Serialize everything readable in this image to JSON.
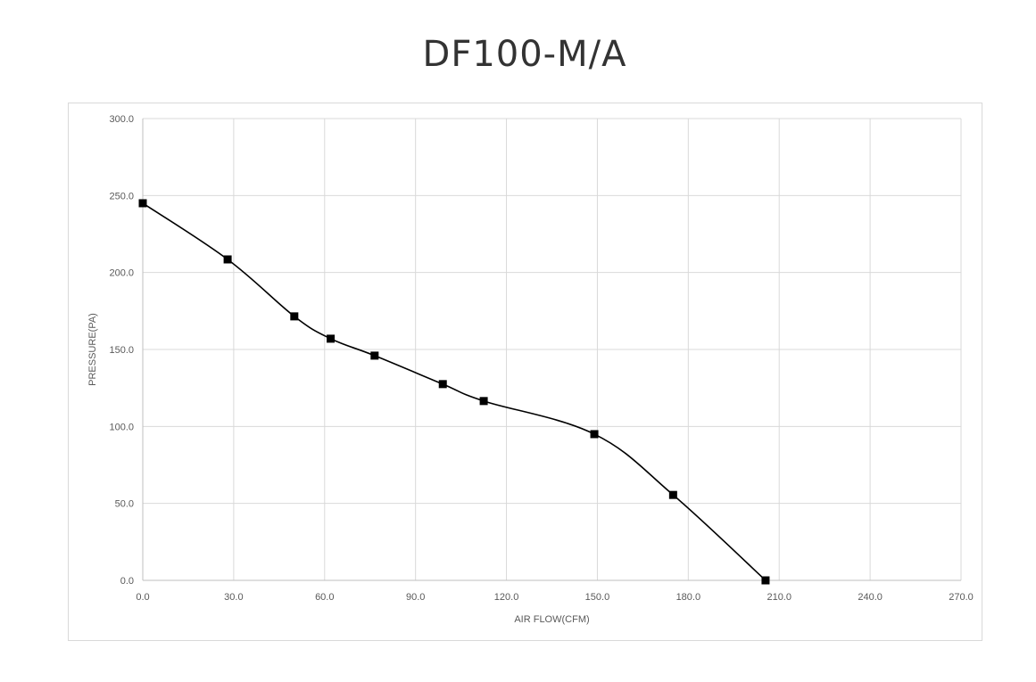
{
  "chart_data": {
    "type": "line",
    "title": "DF100-M/A",
    "xlabel": "AIR FLOW(CFM)",
    "ylabel": "PRESSURE(PA)",
    "xlim": [
      0,
      270
    ],
    "ylim": [
      0,
      300
    ],
    "x_ticks": [
      "0.0",
      "30.0",
      "60.0",
      "90.0",
      "120.0",
      "150.0",
      "180.0",
      "210.0",
      "240.0",
      "270.0"
    ],
    "y_ticks": [
      "0.0",
      "50.0",
      "100.0",
      "150.0",
      "200.0",
      "250.0",
      "300.0"
    ],
    "grid": true,
    "legend": "none",
    "marker": "square",
    "series": [
      {
        "color": "#000000",
        "points": [
          {
            "x": 0.0,
            "y": 245.0
          },
          {
            "x": 28.0,
            "y": 208.5
          },
          {
            "x": 50.0,
            "y": 171.5
          },
          {
            "x": 62.0,
            "y": 157.0
          },
          {
            "x": 76.5,
            "y": 146.0
          },
          {
            "x": 99.0,
            "y": 127.5
          },
          {
            "x": 112.5,
            "y": 116.5
          },
          {
            "x": 149.0,
            "y": 95.0
          },
          {
            "x": 175.0,
            "y": 55.5
          },
          {
            "x": 205.5,
            "y": 0.0
          }
        ]
      }
    ]
  }
}
